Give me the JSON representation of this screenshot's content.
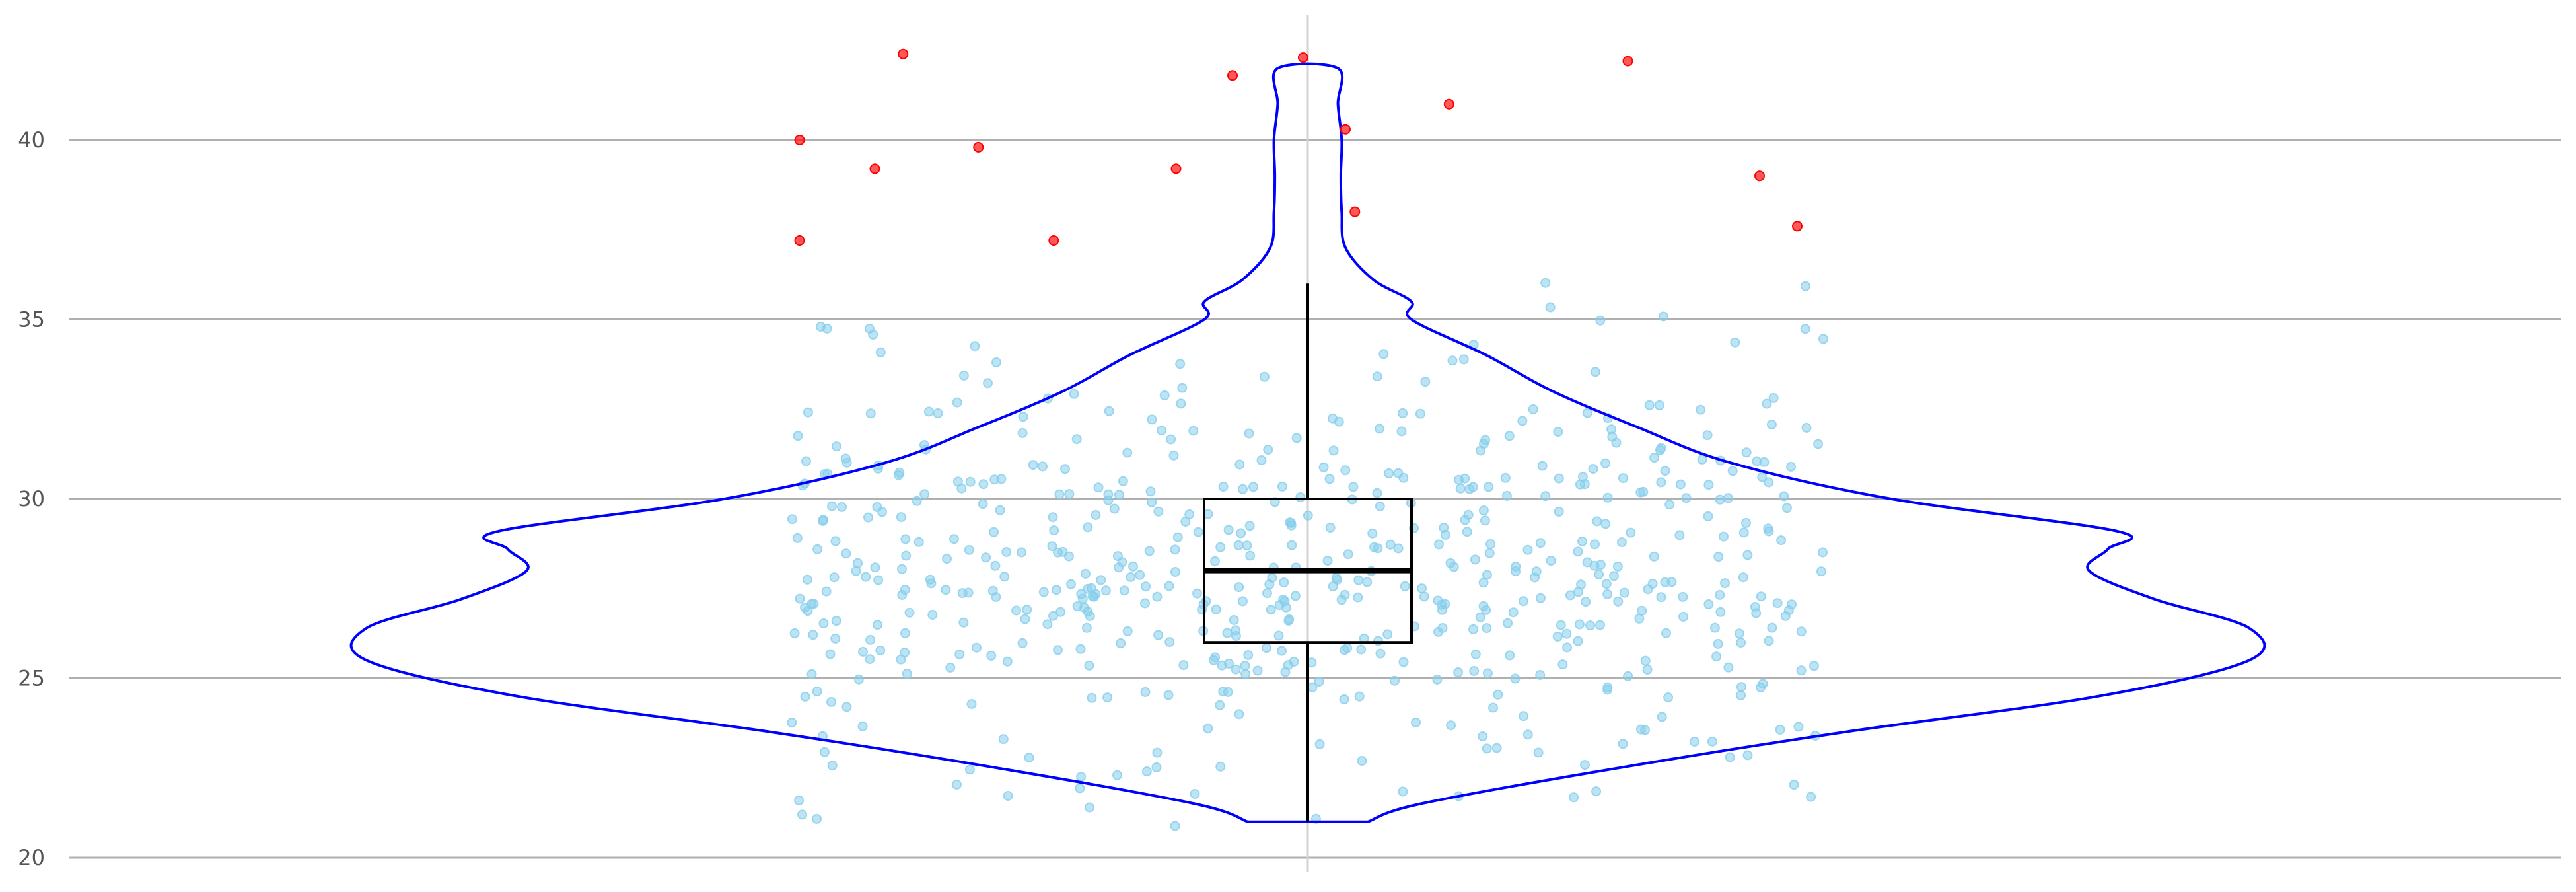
{
  "chart_data": {
    "type": "violin",
    "title": "",
    "xlabel": "",
    "ylabel": "",
    "ylim": [
      20,
      43
    ],
    "yticks": [
      20,
      25,
      30,
      35,
      40
    ],
    "ytick_labels": [
      "20",
      "25",
      "30",
      "35",
      "40"
    ],
    "grid": "horizontal",
    "colors": {
      "violin_outline": "#0000ff",
      "box": "#000000",
      "points": "#87ceeb",
      "outliers": "#ff0000",
      "grid": "#b0b0b0",
      "center_line": "#d3d3d3"
    },
    "box": {
      "min": 21.0,
      "q1": 26.0,
      "median": 28.0,
      "q3": 30.0,
      "max": 36.0
    },
    "violin_profile": [
      {
        "y": 21.0,
        "w": 0.064
      },
      {
        "y": 21.5,
        "w": 0.12
      },
      {
        "y": 22.5,
        "w": 0.33
      },
      {
        "y": 23.5,
        "w": 0.57
      },
      {
        "y": 24.5,
        "w": 0.84
      },
      {
        "y": 25.5,
        "w": 1.0
      },
      {
        "y": 26.4,
        "w": 1.0
      },
      {
        "y": 27.2,
        "w": 0.9
      },
      {
        "y": 28.0,
        "w": 0.83
      },
      {
        "y": 28.6,
        "w": 0.85
      },
      {
        "y": 29.1,
        "w": 0.86
      },
      {
        "y": 30.0,
        "w": 0.62
      },
      {
        "y": 31.0,
        "w": 0.45
      },
      {
        "y": 32.0,
        "w": 0.35
      },
      {
        "y": 33.0,
        "w": 0.26
      },
      {
        "y": 34.0,
        "w": 0.19
      },
      {
        "y": 35.0,
        "w": 0.11
      },
      {
        "y": 35.5,
        "w": 0.11
      },
      {
        "y": 36.1,
        "w": 0.07
      },
      {
        "y": 37.0,
        "w": 0.04
      },
      {
        "y": 38.0,
        "w": 0.036
      },
      {
        "y": 39.0,
        "w": 0.035
      },
      {
        "y": 40.0,
        "w": 0.036
      },
      {
        "y": 41.0,
        "w": 0.032
      },
      {
        "y": 42.0,
        "w": 0.032
      }
    ],
    "outliers": [
      {
        "x": -0.54,
        "y": 40.0
      },
      {
        "x": -0.54,
        "y": 37.2
      },
      {
        "x": -0.46,
        "y": 39.2
      },
      {
        "x": -0.43,
        "y": 42.4
      },
      {
        "x": -0.35,
        "y": 39.8
      },
      {
        "x": -0.27,
        "y": 37.2
      },
      {
        "x": -0.14,
        "y": 39.2
      },
      {
        "x": -0.08,
        "y": 41.8
      },
      {
        "x": -0.005,
        "y": 42.3
      },
      {
        "x": 0.04,
        "y": 40.3
      },
      {
        "x": 0.05,
        "y": 38.0
      },
      {
        "x": 0.15,
        "y": 41.0
      },
      {
        "x": 0.34,
        "y": 42.2
      },
      {
        "x": 0.48,
        "y": 39.0
      },
      {
        "x": 0.52,
        "y": 37.6
      }
    ]
  }
}
